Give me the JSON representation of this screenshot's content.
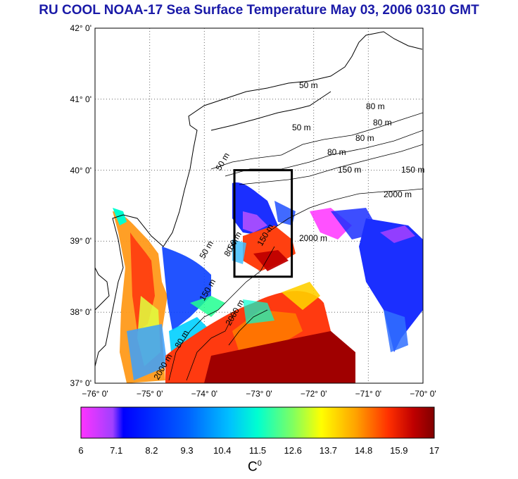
{
  "title": "RU COOL  NOAA-17 Sea Surface Temperature May 03, 2006 0310 GMT",
  "latitude_ticks": [
    "42° 0'",
    "41° 0'",
    "40° 0'",
    "39° 0'",
    "38° 0'",
    "37° 0'"
  ],
  "longitude_ticks": [
    "−76° 0'",
    "−75° 0'",
    "−74° 0'",
    "−73° 0'",
    "−72° 0'",
    "−71° 0'",
    "−70° 0'"
  ],
  "contour_labels": [
    "50 m",
    "50 m",
    "80 m",
    "80 m",
    "80 m",
    "80 m",
    "150 m",
    "150 m",
    "2000 m",
    "50 m",
    "50 m",
    "80 m",
    "150 m",
    "2000 m",
    "50 m",
    "150 m",
    "2000 m",
    "80 m",
    "2000 m"
  ],
  "colorbar": {
    "ticks": [
      "6",
      "7.1",
      "8.2",
      "9.3",
      "10.4",
      "11.5",
      "12.6",
      "13.7",
      "14.8",
      "15.9",
      "17"
    ],
    "unit_label": "C",
    "unit_sup": "0",
    "colors": [
      "#ff33ff",
      "#a040ff",
      "#0000ff",
      "#0060ff",
      "#00c0ff",
      "#00ffd0",
      "#80ff60",
      "#ffff00",
      "#ffa000",
      "#ff3000",
      "#c00000",
      "#800000"
    ]
  },
  "study_box": {
    "lon_min": -73.45,
    "lon_max": -72.4,
    "lat_min": 38.5,
    "lat_max": 40.0
  }
}
